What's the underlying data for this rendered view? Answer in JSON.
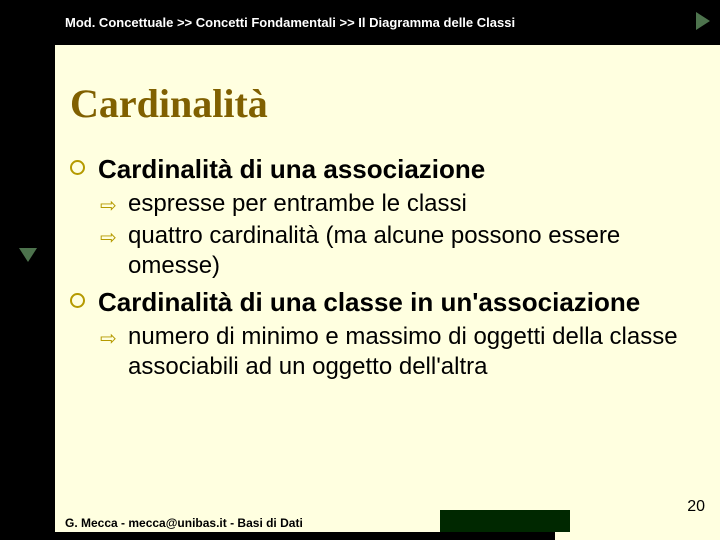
{
  "breadcrumb": "Mod. Concettuale >> Concetti Fondamentali >> Il Diagramma delle Classi",
  "title": "Cardinalità",
  "bullets": {
    "main1": "Cardinalità di una associazione",
    "sub1a": "espresse per entrambe le classi",
    "sub1b": "quattro cardinalità (ma alcune possono essere omesse)",
    "main2": "Cardinalità di una classe in un'associazione",
    "sub2a": "numero di minimo e massimo di oggetti della classe associabili ad un oggetto dell'altra"
  },
  "footer": "G. Mecca - mecca@unibas.it - Basi di Dati",
  "page_number": "20",
  "colors": {
    "background": "#ffffe0",
    "title": "#806000",
    "bullet": "#b59a00",
    "bar": "#000000",
    "nav_arrow": "#4d734d"
  }
}
